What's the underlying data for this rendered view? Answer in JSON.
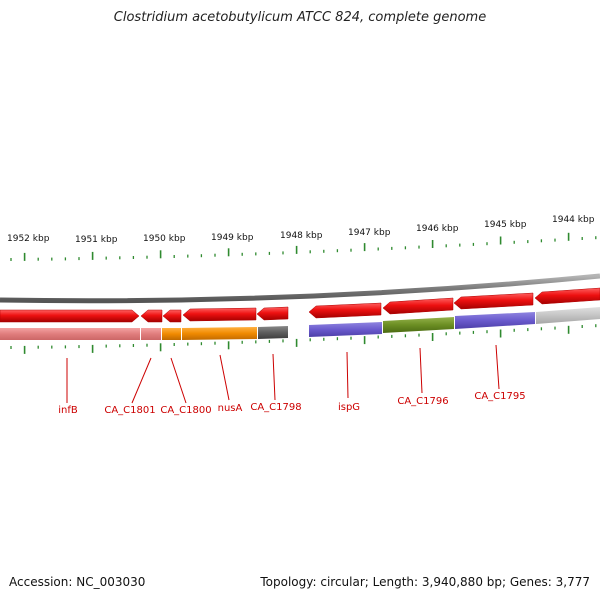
{
  "title": "Clostridium acetobutylicum ATCC 824, complete genome",
  "footer": {
    "accession": "Accession: NC_003030",
    "summary": "Topology: circular; Length: 3,940,880 bp; Genes: 3,777"
  },
  "scale": {
    "labels": [
      "1952 kbp",
      "1951 kbp",
      "1950 kbp",
      "1949 kbp",
      "1948 kbp",
      "1947 kbp",
      "1946 kbp",
      "1945 kbp",
      "1944 kbp"
    ]
  },
  "colors": {
    "forward_feature": "#ee1111",
    "backbone": "#777777",
    "tick": "#2f8a2f",
    "gene_label": "#cc0000"
  },
  "gene_labels": [
    "infB",
    "CA_C1801",
    "CA_C1800",
    "nusA",
    "CA_C1798",
    "ispG",
    "CA_C1796",
    "CA_C1795"
  ]
}
